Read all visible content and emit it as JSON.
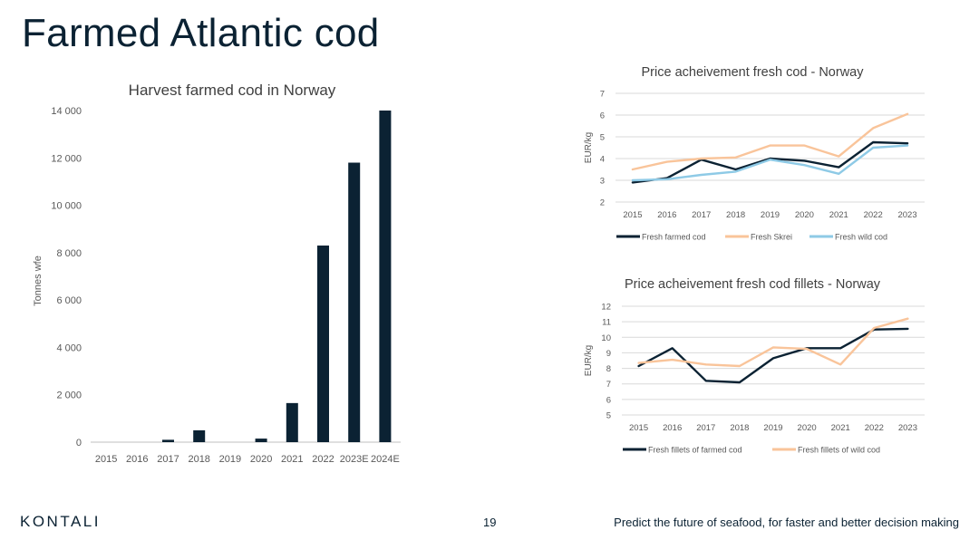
{
  "slide": {
    "title": "Farmed Atlantic cod",
    "footer_logo": "KONTALI",
    "page_number": "19",
    "tagline": "Predict the future of seafood, for faster and better decision making"
  },
  "colors": {
    "bar": "#0b2233",
    "farmed": "#0b2233",
    "skrei": "#f9c49a",
    "wild": "#8ecae6",
    "grid": "#d9d9d9",
    "axis_text": "#595959"
  },
  "chart_data": [
    {
      "id": "harvest",
      "type": "bar",
      "title": "Harvest farmed cod in Norway",
      "xlabel": "",
      "ylabel": "Tonnes wfe",
      "categories": [
        "2015",
        "2016",
        "2017",
        "2018",
        "2019",
        "2020",
        "2021",
        "2022",
        "2023E",
        "2024E"
      ],
      "values": [
        0,
        0,
        100,
        500,
        0,
        150,
        1650,
        8300,
        11800,
        14000
      ],
      "ylim": [
        0,
        14000
      ],
      "yticks": [
        0,
        2000,
        4000,
        6000,
        8000,
        10000,
        12000,
        14000
      ],
      "ytick_labels": [
        "0",
        "2 000",
        "4 000",
        "6 000",
        "8 000",
        "10 000",
        "12 000",
        "14 000"
      ],
      "grid": false
    },
    {
      "id": "price-fresh",
      "type": "line",
      "title": "Price acheivement fresh cod - Norway",
      "xlabel": "",
      "ylabel": "EUR/kg",
      "categories": [
        "2015",
        "2016",
        "2017",
        "2018",
        "2019",
        "2020",
        "2021",
        "2022",
        "2023"
      ],
      "ylim": [
        2,
        7
      ],
      "yticks": [
        2,
        3,
        4,
        5,
        6,
        7
      ],
      "ytick_labels": [
        "2",
        "3",
        "4",
        "5",
        "6",
        "7"
      ],
      "grid": true,
      "legend_position": "bottom",
      "series": [
        {
          "name": "Fresh farmed cod",
          "color_key": "farmed",
          "values": [
            2.9,
            3.1,
            3.95,
            3.5,
            4.0,
            3.9,
            3.6,
            4.75,
            4.7
          ]
        },
        {
          "name": "Fresh Skrei",
          "color_key": "skrei",
          "values": [
            3.5,
            3.85,
            4.0,
            4.05,
            4.6,
            4.6,
            4.1,
            5.4,
            6.05
          ]
        },
        {
          "name": "Fresh wild cod",
          "color_key": "wild",
          "values": [
            3.0,
            3.05,
            3.25,
            3.4,
            3.95,
            3.7,
            3.3,
            4.5,
            4.6
          ]
        }
      ]
    },
    {
      "id": "price-fillets",
      "type": "line",
      "title": "Price acheivement fresh cod fillets - Norway",
      "xlabel": "",
      "ylabel": "EUR/kg",
      "categories": [
        "2015",
        "2016",
        "2017",
        "2018",
        "2019",
        "2020",
        "2021",
        "2022",
        "2023"
      ],
      "ylim": [
        5,
        12
      ],
      "yticks": [
        5,
        6,
        7,
        8,
        9,
        10,
        11,
        12
      ],
      "ytick_labels": [
        "5",
        "6",
        "7",
        "8",
        "9",
        "10",
        "11",
        "12"
      ],
      "grid": true,
      "legend_position": "bottom",
      "series": [
        {
          "name": "Fresh fillets of farmed cod",
          "color_key": "farmed",
          "values": [
            8.15,
            9.3,
            7.2,
            7.1,
            8.65,
            9.3,
            9.3,
            10.5,
            10.55
          ]
        },
        {
          "name": "Fresh fillets of wild cod",
          "color_key": "skrei",
          "values": [
            8.35,
            8.55,
            8.25,
            8.15,
            9.35,
            9.25,
            8.25,
            10.6,
            11.2
          ]
        }
      ]
    }
  ]
}
